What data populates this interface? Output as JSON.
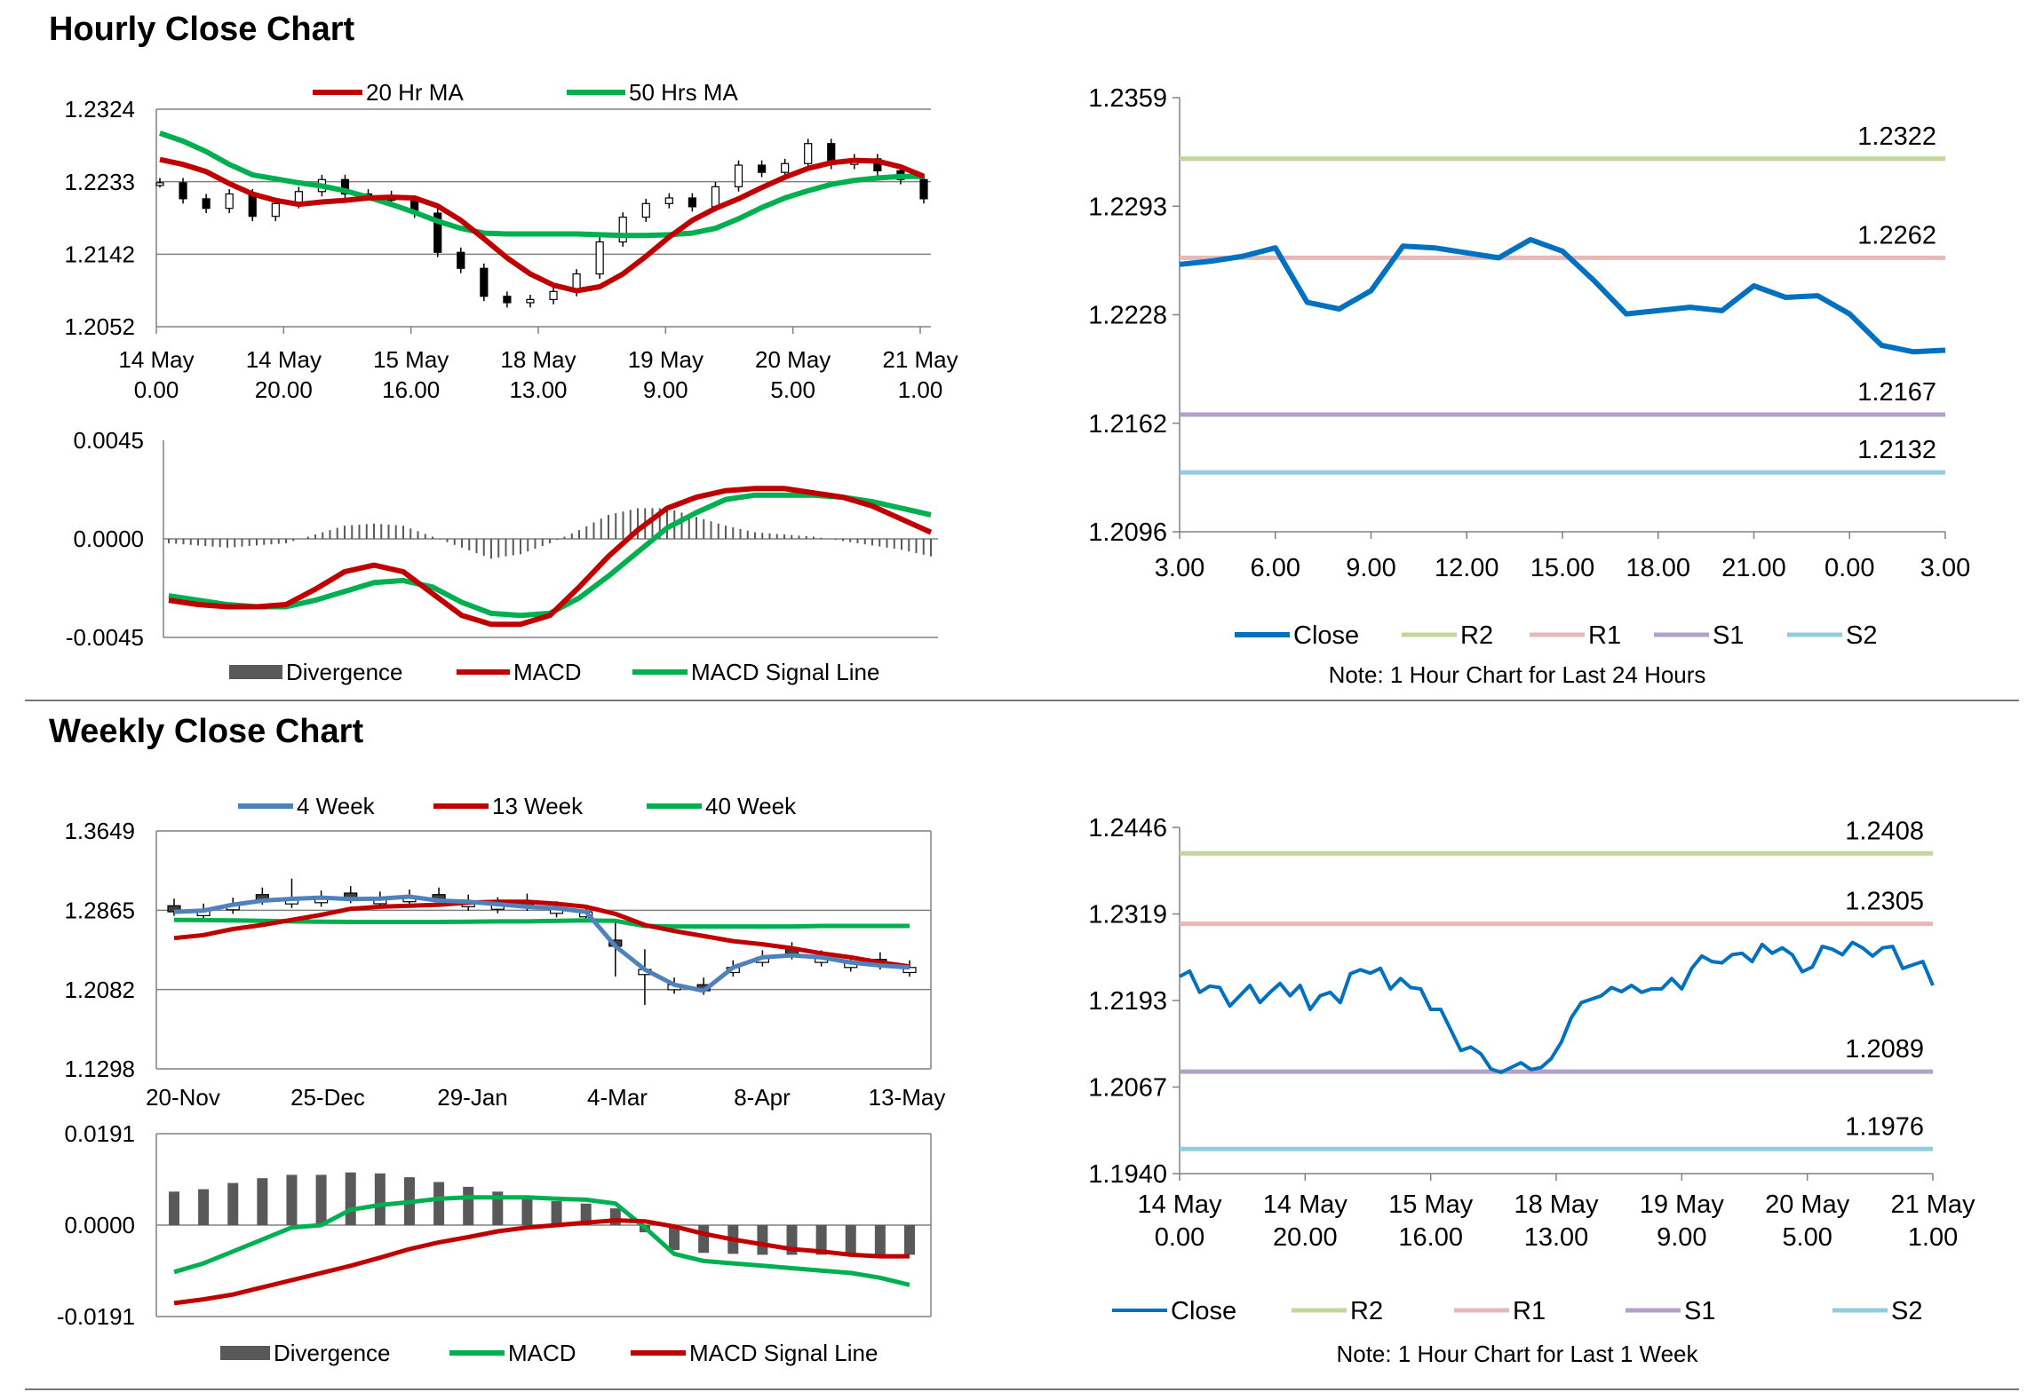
{
  "sections": {
    "hourly_title": "Hourly Close Chart",
    "weekly_title": "Weekly Close Chart"
  },
  "colors": {
    "red": "#C00000",
    "green": "#00B050",
    "blue_close": "#0070C0",
    "blue_4wk": "#4F81BD",
    "r2": "#C3D69B",
    "r1": "#E6B9B8",
    "s1": "#B3A2C7",
    "s2": "#93CDDD",
    "divergence": "#595959",
    "grid": "#808080"
  },
  "chart_data": [
    {
      "id": "hourly_price",
      "type": "candlestick+line",
      "title": "",
      "ylim": [
        1.2052,
        1.2324
      ],
      "yticks": [
        "1.2324",
        "1.2233",
        "1.2142",
        "1.2052"
      ],
      "xticks": [
        [
          "14 May",
          "0.00"
        ],
        [
          "14 May",
          "20.00"
        ],
        [
          "15 May",
          "16.00"
        ],
        [
          "18 May",
          "13.00"
        ],
        [
          "19 May",
          "9.00"
        ],
        [
          "20 May",
          "5.00"
        ],
        [
          "21 May",
          "1.00"
        ]
      ],
      "legend": [
        "20 Hr MA",
        "50 Hrs MA"
      ],
      "series": [
        {
          "name": "20 Hr MA",
          "values": [
            1.2261,
            1.2255,
            1.2246,
            1.2231,
            1.2218,
            1.221,
            1.2205,
            1.2208,
            1.221,
            1.2213,
            1.2214,
            1.2213,
            1.2203,
            1.2185,
            1.2162,
            1.2138,
            1.2118,
            1.2104,
            1.2097,
            1.2102,
            1.2118,
            1.214,
            1.2164,
            1.2185,
            1.22,
            1.2212,
            1.2226,
            1.2239,
            1.225,
            1.2257,
            1.226,
            1.2259,
            1.2252,
            1.224
          ]
        },
        {
          "name": "50 Hrs MA",
          "values": [
            1.2294,
            1.2284,
            1.2271,
            1.2255,
            1.2242,
            1.2237,
            1.2232,
            1.2228,
            1.2222,
            1.2214,
            1.2205,
            1.2195,
            1.2184,
            1.2175,
            1.2169,
            1.2168,
            1.2168,
            1.2168,
            1.2168,
            1.2167,
            1.2166,
            1.2166,
            1.2167,
            1.2169,
            1.2175,
            1.2187,
            1.2201,
            1.2213,
            1.2222,
            1.223,
            1.2235,
            1.2238,
            1.224,
            1.224
          ]
        },
        {
          "name": "Close",
          "values": [
            1.2232,
            1.2212,
            1.22,
            1.2218,
            1.219,
            1.2206,
            1.2221,
            1.2236,
            1.2218,
            1.2216,
            1.221,
            1.2194,
            1.2145,
            1.2125,
            1.209,
            1.2082,
            1.2086,
            1.2096,
            1.2118,
            1.2158,
            1.2189,
            1.2206,
            1.2213,
            1.2202,
            1.2227,
            1.2254,
            1.2245,
            1.2256,
            1.2281,
            1.2255,
            1.2262,
            1.2247,
            1.2236,
            1.2212
          ]
        }
      ]
    },
    {
      "id": "hourly_macd",
      "type": "bar+line",
      "ylim": [
        -0.0045,
        0.0045
      ],
      "yticks": [
        "0.0045",
        "0.0000",
        "-0.0045"
      ],
      "legend": [
        "Divergence",
        "MACD",
        "MACD Signal Line"
      ],
      "series": [
        {
          "name": "MACD",
          "values": [
            -0.0028,
            -0.003,
            -0.0031,
            -0.0031,
            -0.003,
            -0.0023,
            -0.0015,
            -0.0012,
            -0.0015,
            -0.0025,
            -0.0035,
            -0.0039,
            -0.0039,
            -0.0035,
            -0.0022,
            -0.0008,
            0.0004,
            0.0014,
            0.0019,
            0.0022,
            0.0023,
            0.0023,
            0.0021,
            0.0019,
            0.0015,
            0.0009,
            0.0003
          ]
        },
        {
          "name": "MACD Signal Line",
          "values": [
            -0.0026,
            -0.0028,
            -0.003,
            -0.0031,
            -0.0031,
            -0.0028,
            -0.0024,
            -0.002,
            -0.0019,
            -0.0022,
            -0.0029,
            -0.0034,
            -0.0035,
            -0.0034,
            -0.0027,
            -0.0017,
            -0.0006,
            0.0005,
            0.0012,
            0.0018,
            0.002,
            0.002,
            0.002,
            0.0019,
            0.0017,
            0.0014,
            0.0011
          ]
        },
        {
          "name": "Divergence",
          "values": [
            -0.0002,
            -0.0003,
            -0.0004,
            -0.0003,
            -0.0002,
            0.0002,
            0.0006,
            0.0007,
            0.0006,
            0.0001,
            -0.0004,
            -0.0009,
            -0.0007,
            -0.0002,
            0.0004,
            0.0011,
            0.0014,
            0.0014,
            0.001,
            0.0006,
            0.0003,
            0.0002,
            0.0001,
            -0.0001,
            -0.0003,
            -0.0005,
            -0.0008
          ]
        }
      ]
    },
    {
      "id": "hourly_24h",
      "type": "line",
      "ylim": [
        1.2096,
        1.2359
      ],
      "yticks": [
        "1.2359",
        "1.2293",
        "1.2228",
        "1.2162",
        "1.2096"
      ],
      "xticks": [
        "3.00",
        "6.00",
        "9.00",
        "12.00",
        "15.00",
        "18.00",
        "21.00",
        "0.00",
        "3.00"
      ],
      "levels": {
        "R2": "1.2322",
        "R1": "1.2262",
        "S1": "1.2167",
        "S2": "1.2132"
      },
      "level_values": {
        "R2": 1.2322,
        "R1": 1.2262,
        "S1": 1.2167,
        "S2": 1.2132
      },
      "legend": [
        "Close",
        "R2",
        "R1",
        "S1",
        "S2"
      ],
      "note": "Note: 1 Hour Chart for Last 24 Hours",
      "series": [
        {
          "name": "Close",
          "x": [
            0,
            1,
            2,
            3,
            4,
            5,
            6,
            7,
            8,
            9,
            10,
            11,
            12,
            13,
            14,
            15,
            16,
            17,
            18,
            19,
            20,
            21,
            22,
            23,
            24
          ],
          "values": [
            1.2258,
            1.226,
            1.2263,
            1.2268,
            1.2235,
            1.2231,
            1.2242,
            1.2269,
            1.2268,
            1.2265,
            1.2262,
            1.2273,
            1.2266,
            1.2248,
            1.2228,
            1.223,
            1.2232,
            1.223,
            1.2245,
            1.2238,
            1.2239,
            1.2228,
            1.2209,
            1.2205,
            1.2206
          ]
        }
      ]
    },
    {
      "id": "weekly_price",
      "type": "candlestick+line",
      "ylim": [
        1.1298,
        1.3649
      ],
      "yticks": [
        "1.3649",
        "1.2865",
        "1.2082",
        "1.1298"
      ],
      "xticks": [
        "20-Nov",
        "25-Dec",
        "29-Jan",
        "4-Mar",
        "8-Apr",
        "13-May"
      ],
      "legend": [
        "4 Week",
        "13 Week",
        "40 Week"
      ],
      "series": [
        {
          "name": "4 Week",
          "values": [
            1.285,
            1.2862,
            1.292,
            1.296,
            1.2978,
            1.299,
            1.2975,
            1.298,
            1.3,
            1.296,
            1.295,
            1.2925,
            1.29,
            1.2885,
            1.285,
            1.251,
            1.228,
            1.213,
            1.207,
            1.23,
            1.24,
            1.242,
            1.24,
            1.235,
            1.232,
            1.23
          ]
        },
        {
          "name": "13 Week",
          "values": [
            1.259,
            1.262,
            1.268,
            1.272,
            1.277,
            1.282,
            1.288,
            1.29,
            1.291,
            1.292,
            1.294,
            1.295,
            1.295,
            1.293,
            1.29,
            1.283,
            1.272,
            1.266,
            1.261,
            1.256,
            1.253,
            1.249,
            1.244,
            1.24,
            1.235,
            1.231
          ]
        },
        {
          "name": "40 Week",
          "values": [
            1.277,
            1.2768,
            1.2765,
            1.276,
            1.2755,
            1.2752,
            1.275,
            1.275,
            1.275,
            1.275,
            1.2752,
            1.2755,
            1.2755,
            1.276,
            1.2765,
            1.276,
            1.271,
            1.2705,
            1.2705,
            1.2705,
            1.2705,
            1.2705,
            1.271,
            1.271,
            1.271,
            1.271
          ]
        }
      ]
    },
    {
      "id": "weekly_macd",
      "type": "bar+line",
      "ylim": [
        -0.0191,
        0.0191
      ],
      "yticks": [
        "0.0191",
        "0.0000",
        "-0.0191"
      ],
      "legend": [
        "Divergence",
        "MACD",
        "MACD Signal Line"
      ],
      "series": [
        {
          "name": "MACD",
          "values": [
            -0.0098,
            -0.008,
            -0.0055,
            -0.003,
            -0.0005,
            0.0,
            0.0032,
            0.0042,
            0.0048,
            0.0055,
            0.0058,
            0.0058,
            0.0058,
            0.0055,
            0.0053,
            0.0045,
            -0.0005,
            -0.006,
            -0.0075,
            -0.008,
            -0.0085,
            -0.009,
            -0.0095,
            -0.01,
            -0.011,
            -0.0125
          ]
        },
        {
          "name": "MACD Signal Line",
          "values": [
            -0.0163,
            -0.0155,
            -0.0145,
            -0.013,
            -0.0115,
            -0.01,
            -0.0085,
            -0.0068,
            -0.005,
            -0.0036,
            -0.0025,
            -0.0013,
            -0.0005,
            0.0,
            0.0005,
            0.001,
            0.0008,
            -0.0003,
            -0.0018,
            -0.003,
            -0.004,
            -0.005,
            -0.0055,
            -0.0062,
            -0.0065,
            -0.0065
          ]
        },
        {
          "name": "Divergence",
          "values": [
            0.007,
            0.0075,
            0.0088,
            0.0098,
            0.0105,
            0.0105,
            0.011,
            0.0108,
            0.01,
            0.009,
            0.008,
            0.007,
            0.006,
            0.005,
            0.0045,
            0.0035,
            -0.0015,
            -0.0052,
            -0.0058,
            -0.006,
            -0.0062,
            -0.0062,
            -0.0062,
            -0.0062,
            -0.0062,
            -0.0062
          ]
        }
      ]
    },
    {
      "id": "weekly_1w",
      "type": "line",
      "ylim": [
        1.194,
        1.2446
      ],
      "yticks": [
        "1.2446",
        "1.2319",
        "1.2193",
        "1.2067",
        "1.1940"
      ],
      "xticks": [
        [
          "14 May",
          "0.00"
        ],
        [
          "14 May",
          "20.00"
        ],
        [
          "15 May",
          "16.00"
        ],
        [
          "18 May",
          "13.00"
        ],
        [
          "19 May",
          "9.00"
        ],
        [
          "20 May",
          "5.00"
        ],
        [
          "21 May",
          "1.00"
        ]
      ],
      "levels": {
        "R2": "1.2408",
        "R1": "1.2305",
        "S1": "1.2089",
        "S2": "1.1976"
      },
      "level_values": {
        "R2": 1.2408,
        "R1": 1.2305,
        "S1": 1.2089,
        "S2": 1.1976
      },
      "legend": [
        "Close",
        "R2",
        "R1",
        "S1",
        "S2"
      ],
      "note": "Note: 1 Hour Chart for Last 1 Week",
      "series": [
        {
          "name": "Close",
          "values": [
            1.2228,
            1.2236,
            1.2205,
            1.2214,
            1.2212,
            1.2185,
            1.22,
            1.2215,
            1.219,
            1.2205,
            1.2218,
            1.22,
            1.2215,
            1.218,
            1.22,
            1.2205,
            1.219,
            1.2232,
            1.2238,
            1.2233,
            1.224,
            1.221,
            1.2225,
            1.2212,
            1.221,
            1.218,
            1.218,
            1.215,
            1.212,
            1.2125,
            1.2115,
            1.2093,
            1.2088,
            1.2095,
            1.2102,
            1.2092,
            1.2095,
            1.2108,
            1.2132,
            1.2168,
            1.219,
            1.2195,
            1.22,
            1.2212,
            1.2206,
            1.2215,
            1.2205,
            1.221,
            1.221,
            1.2225,
            1.221,
            1.224,
            1.2258,
            1.225,
            1.2248,
            1.226,
            1.2262,
            1.225,
            1.2275,
            1.2262,
            1.227,
            1.226,
            1.2235,
            1.2242,
            1.2272,
            1.2268,
            1.226,
            1.2278,
            1.227,
            1.2258,
            1.227,
            1.2272,
            1.224,
            1.2245,
            1.225,
            1.2215
          ]
        }
      ]
    }
  ]
}
